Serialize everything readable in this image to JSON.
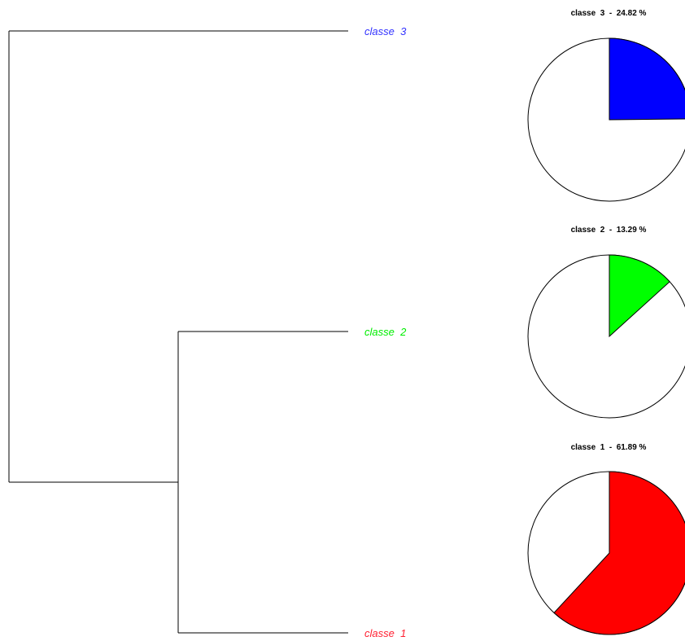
{
  "chart_data": [
    {
      "type": "dendrogram",
      "leaves": [
        {
          "name": "classe  3",
          "color": "#3333ff"
        },
        {
          "name": "classe  2",
          "color": "#00ee00"
        },
        {
          "name": "classe  1",
          "color": "#ff2233"
        }
      ],
      "merges": [
        {
          "children": [
            "classe  2",
            "classe  1"
          ]
        },
        {
          "children": [
            "classe  3",
            "merge-1"
          ]
        }
      ]
    },
    {
      "type": "pie",
      "title": "classe  3  -  24.82 %",
      "value_percent": 24.82,
      "fill": "#0000ff"
    },
    {
      "type": "pie",
      "title": "classe  2  -  13.29 %",
      "value_percent": 13.29,
      "fill": "#00ff00"
    },
    {
      "type": "pie",
      "title": "classe  1  -  61.89 %",
      "value_percent": 61.89,
      "fill": "#ff0000"
    }
  ]
}
